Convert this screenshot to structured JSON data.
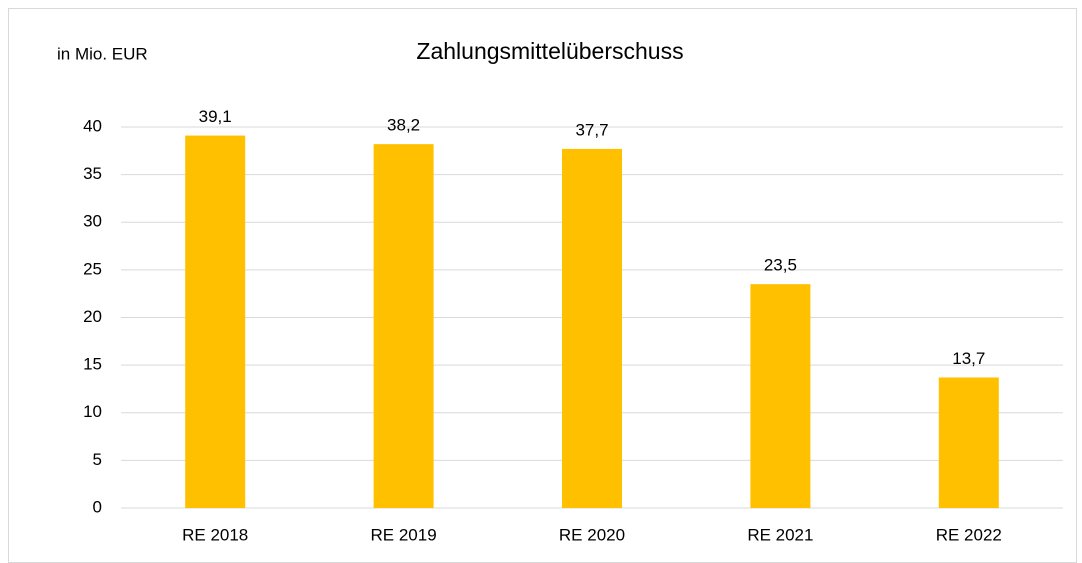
{
  "chart_data": {
    "type": "bar",
    "title": "Zahlungsmittelüberschuss",
    "y_label": "in Mio. EUR",
    "categories": [
      "RE 2018",
      "RE 2019",
      "RE 2020",
      "RE 2021",
      "RE 2022"
    ],
    "values": [
      39.1,
      38.2,
      37.7,
      23.5,
      13.7
    ],
    "value_labels": [
      "39,1",
      "38,2",
      "37,7",
      "23,5",
      "13,7"
    ],
    "color": "#ffc000",
    "ylim": [
      0,
      40
    ],
    "yticks": [
      0,
      5,
      10,
      15,
      20,
      25,
      30,
      35,
      40
    ],
    "grid": true
  }
}
